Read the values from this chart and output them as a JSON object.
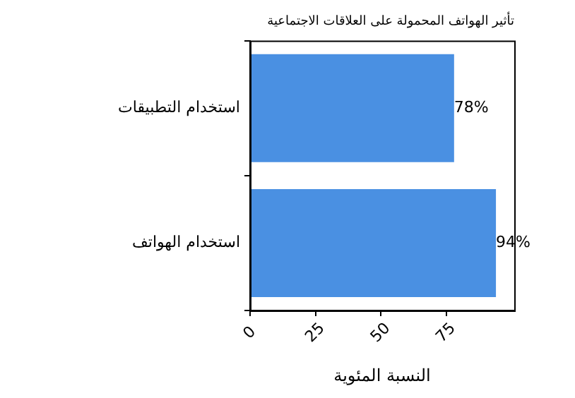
{
  "chart_data": {
    "type": "bar",
    "orientation": "horizontal",
    "title": "تأثير الهواتف المحمولة على العلاقات الاجتماعية",
    "xlabel": "النسبة المئوية",
    "categories": [
      "استخدام التطبيقات",
      "استخدام الهواتف"
    ],
    "values": [
      78,
      94
    ],
    "value_labels": [
      "78%",
      "94%"
    ],
    "color": "#4a90e2",
    "xlim": [
      0,
      101
    ],
    "xticks": [
      0,
      25,
      50,
      75
    ],
    "grid": false,
    "legend": false
  }
}
